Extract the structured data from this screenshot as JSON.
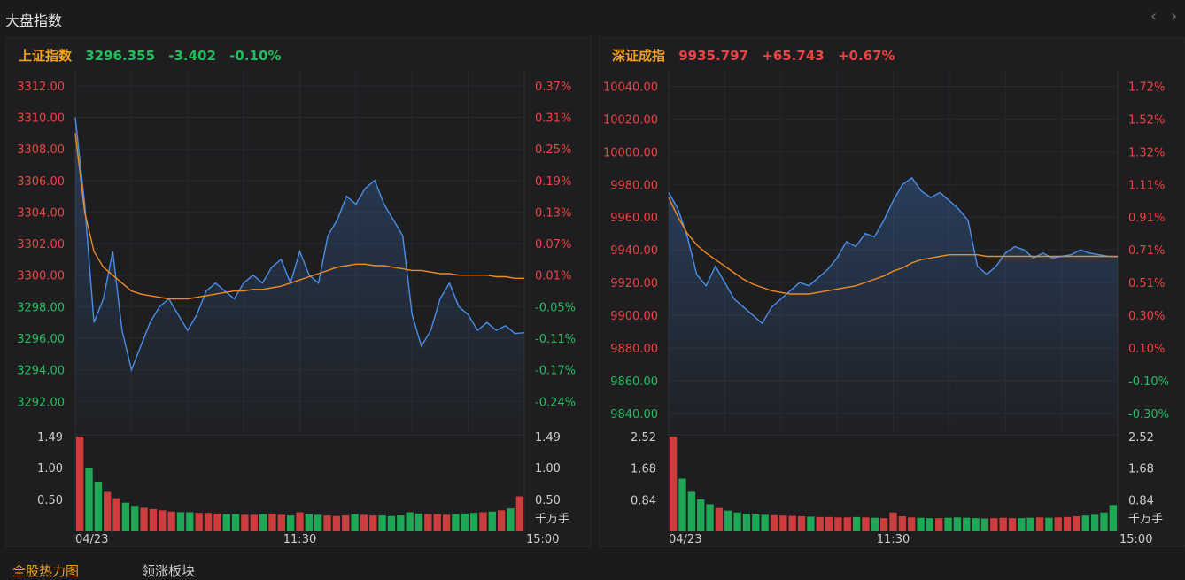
{
  "app": {
    "title": "大盘指数"
  },
  "nav": {
    "prev_icon": "chevron-left-icon",
    "next_icon": "chevron-right-icon",
    "prev": "‹",
    "next": "›"
  },
  "colors": {
    "up": "#ec4343",
    "down": "#1fbf5e",
    "price_line": "#4a8fe8",
    "avg_line": "#f08a22",
    "title": "#f3a020"
  },
  "tabs": [
    {
      "label": "全股热力图"
    },
    {
      "label": "领涨板块"
    }
  ],
  "indices": [
    {
      "name": "上证指数",
      "price": "3296.355",
      "change": "-3.402",
      "pct": "-0.10%",
      "trend": "down",
      "price_ticks": [
        "3312.00",
        "3310.00",
        "3308.00",
        "3306.00",
        "3304.00",
        "3302.00",
        "3300.00",
        "3298.00",
        "3296.00",
        "3294.00",
        "3292.00"
      ],
      "pct_ticks": [
        "0.37%",
        "0.31%",
        "0.25%",
        "0.19%",
        "0.13%",
        "0.07%",
        "0.01%",
        "-0.05%",
        "-0.11%",
        "-0.17%",
        "-0.24%"
      ],
      "vol_ticks_left": [
        "1.49",
        "1.00",
        "0.50"
      ],
      "vol_ticks_right": [
        "1.49",
        "1.00",
        "0.50"
      ],
      "vol_unit": "千万手",
      "time_labels": [
        "04/23",
        "11:30",
        "15:00"
      ]
    },
    {
      "name": "深证成指",
      "price": "9935.797",
      "change": "+65.743",
      "pct": "+0.67%",
      "trend": "up",
      "price_ticks": [
        "10040.00",
        "10020.00",
        "10000.00",
        "9980.00",
        "9960.00",
        "9940.00",
        "9920.00",
        "9900.00",
        "9880.00",
        "9860.00",
        "9840.00"
      ],
      "pct_ticks": [
        "1.72%",
        "1.52%",
        "1.32%",
        "1.11%",
        "0.91%",
        "0.71%",
        "0.51%",
        "0.30%",
        "0.10%",
        "-0.10%",
        "-0.30%"
      ],
      "vol_ticks_left": [
        "2.52",
        "1.68",
        "0.84"
      ],
      "vol_ticks_right": [
        "2.52",
        "1.68",
        "0.84"
      ],
      "vol_unit": "千万手",
      "time_labels": [
        "04/23",
        "11:30",
        "15:00"
      ]
    }
  ],
  "chart_data": [
    {
      "type": "line",
      "title": "上证指数",
      "ylim": [
        3290.0,
        3313.0
      ],
      "prev_close": 3299.757,
      "x": [
        0,
        5,
        10,
        15,
        20,
        25,
        30,
        35,
        40,
        45,
        50,
        55,
        60,
        65,
        70,
        75,
        80,
        85,
        90,
        95,
        100,
        105,
        110,
        115,
        120,
        125,
        130,
        135,
        140,
        145,
        150,
        155,
        160,
        165,
        170,
        175,
        180,
        185,
        190,
        195,
        200,
        205,
        210,
        215,
        220,
        225,
        230,
        235,
        240
      ],
      "series": [
        {
          "values": [
            3310.0,
            3304.5,
            3297.0,
            3298.5,
            3301.5,
            3296.5,
            3294.0,
            3295.5,
            3297.0,
            3298.0,
            3298.5,
            3297.5,
            3296.5,
            3297.5,
            3299.0,
            3299.5,
            3299.0,
            3298.5,
            3299.5,
            3300.0,
            3299.5,
            3300.5,
            3301.0,
            3299.5,
            3301.5,
            3300.0,
            3299.5,
            3302.5,
            3303.5,
            3305.0,
            3304.5,
            3305.5,
            3306.0,
            3304.5,
            3303.5,
            3302.5,
            3297.5,
            3295.5,
            3296.5,
            3298.5,
            3299.5,
            3298.0,
            3297.5,
            3296.5,
            3297.0,
            3296.5,
            3296.8,
            3296.3,
            3296.355
          ]
        },
        {
          "values": [
            3309.0,
            3304.0,
            3301.5,
            3300.5,
            3300.0,
            3299.5,
            3299.0,
            3298.8,
            3298.7,
            3298.6,
            3298.5,
            3298.5,
            3298.5,
            3298.6,
            3298.7,
            3298.8,
            3298.9,
            3299.0,
            3299.0,
            3299.1,
            3299.1,
            3299.2,
            3299.3,
            3299.5,
            3299.7,
            3299.9,
            3300.1,
            3300.3,
            3300.5,
            3300.6,
            3300.7,
            3300.7,
            3300.6,
            3300.6,
            3300.5,
            3300.4,
            3300.3,
            3300.3,
            3300.2,
            3300.1,
            3300.1,
            3300.0,
            3300.0,
            3300.0,
            3300.0,
            3299.9,
            3299.9,
            3299.8,
            3299.8
          ]
        }
      ],
      "volume": [
        1.49,
        1.0,
        0.78,
        0.62,
        0.52,
        0.45,
        0.4,
        0.37,
        0.35,
        0.33,
        0.31,
        0.3,
        0.3,
        0.29,
        0.29,
        0.28,
        0.27,
        0.27,
        0.26,
        0.26,
        0.27,
        0.28,
        0.26,
        0.25,
        0.3,
        0.27,
        0.26,
        0.25,
        0.24,
        0.25,
        0.27,
        0.26,
        0.25,
        0.25,
        0.24,
        0.25,
        0.3,
        0.28,
        0.27,
        0.27,
        0.26,
        0.27,
        0.28,
        0.29,
        0.3,
        0.31,
        0.33,
        0.36,
        0.55
      ]
    },
    {
      "type": "line",
      "title": "深证成指",
      "ylim": [
        9828.0,
        10050.0
      ],
      "prev_close": 9870.054,
      "x": [
        0,
        5,
        10,
        15,
        20,
        25,
        30,
        35,
        40,
        45,
        50,
        55,
        60,
        65,
        70,
        75,
        80,
        85,
        90,
        95,
        100,
        105,
        110,
        115,
        120,
        125,
        130,
        135,
        140,
        145,
        150,
        155,
        160,
        165,
        170,
        175,
        180,
        185,
        190,
        195,
        200,
        205,
        210,
        215,
        220,
        225,
        230,
        235,
        240
      ],
      "series": [
        {
          "values": [
            9975.0,
            9965.0,
            9948.0,
            9925.0,
            9918.0,
            9930.0,
            9920.0,
            9910.0,
            9905.0,
            9900.0,
            9895.0,
            9905.0,
            9910.0,
            9915.0,
            9920.0,
            9918.0,
            9923.0,
            9928.0,
            9935.0,
            9945.0,
            9942.0,
            9950.0,
            9948.0,
            9958.0,
            9970.0,
            9980.0,
            9984.0,
            9976.0,
            9972.0,
            9975.0,
            9970.0,
            9965.0,
            9958.0,
            9930.0,
            9925.0,
            9930.0,
            9938.0,
            9942.0,
            9940.0,
            9935.0,
            9938.0,
            9935.0,
            9936.0,
            9937.0,
            9940.0,
            9938.0,
            9937.0,
            9936.0,
            9935.797
          ]
        },
        {
          "values": [
            9972.0,
            9960.0,
            9950.0,
            9943.0,
            9938.0,
            9934.0,
            9930.0,
            9926.0,
            9922.0,
            9919.0,
            9917.0,
            9915.0,
            9914.0,
            9913.0,
            9913.0,
            9913.0,
            9914.0,
            9915.0,
            9916.0,
            9917.0,
            9918.0,
            9920.0,
            9922.0,
            9924.0,
            9927.0,
            9929.0,
            9932.0,
            9934.0,
            9935.0,
            9936.0,
            9937.0,
            9937.0,
            9937.0,
            9937.0,
            9936.0,
            9936.0,
            9936.0,
            9936.0,
            9936.0,
            9936.0,
            9936.0,
            9936.0,
            9936.0,
            9936.0,
            9936.0,
            9936.0,
            9936.0,
            9936.0,
            9936.0
          ]
        }
      ],
      "volume": [
        2.52,
        1.4,
        1.05,
        0.85,
        0.72,
        0.62,
        0.55,
        0.5,
        0.47,
        0.45,
        0.44,
        0.43,
        0.42,
        0.41,
        0.4,
        0.39,
        0.38,
        0.38,
        0.37,
        0.37,
        0.38,
        0.37,
        0.36,
        0.35,
        0.5,
        0.4,
        0.37,
        0.36,
        0.35,
        0.35,
        0.36,
        0.37,
        0.36,
        0.35,
        0.34,
        0.35,
        0.36,
        0.35,
        0.35,
        0.36,
        0.37,
        0.36,
        0.37,
        0.38,
        0.4,
        0.42,
        0.44,
        0.5,
        0.7
      ]
    }
  ]
}
